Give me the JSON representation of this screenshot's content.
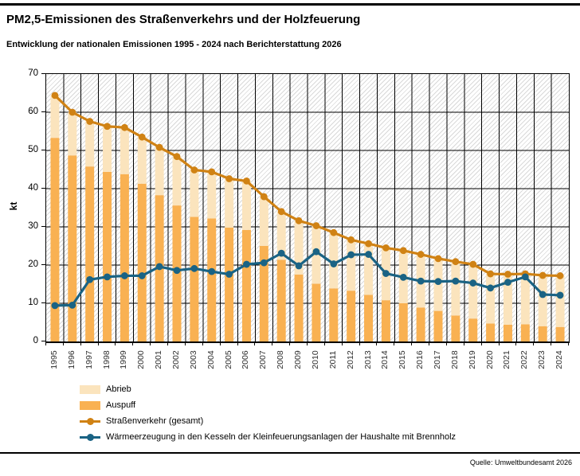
{
  "page": {
    "title": "PM2,5-Emissionen des Straßenverkehrs und der Holzfeuerung",
    "subtitle": "Entwicklung der nationalen Emissionen 1995 - 2024 nach Berichterstattung 2026",
    "source": "Quelle: Umweltbundesamt 2026"
  },
  "colors": {
    "abrieb": "#FBE4BD",
    "auspuff": "#F9B152",
    "strassenverkehr": "#D08214",
    "holz": "#1A6384",
    "grid": "#000000",
    "tick_text": "#2e2e2e"
  },
  "chart_data": {
    "type": "bar",
    "subtype": "stacked-bars-with-lines",
    "title": "PM2,5-Emissionen des Straßenverkehrs und der Holzfeuerung",
    "xlabel": "",
    "ylabel": "kt",
    "ylim": [
      0,
      70
    ],
    "y_tick_step": 10,
    "grid": true,
    "legend_position": "bottom-left",
    "categories": [
      "1995",
      "1996",
      "1997",
      "1998",
      "1999",
      "2000",
      "2001",
      "2002",
      "2003",
      "2004",
      "2005",
      "2006",
      "2007",
      "2008",
      "2009",
      "2010",
      "2011",
      "2012",
      "2013",
      "2014",
      "2015",
      "2016",
      "2017",
      "2018",
      "2019",
      "2020",
      "2021",
      "2022",
      "2023",
      "2024"
    ],
    "series": [
      {
        "name": "Abrieb",
        "type": "bar-stack-top",
        "values": [
          11.1,
          11.3,
          11.8,
          11.9,
          12.2,
          12.2,
          12.5,
          12.8,
          12.3,
          12.2,
          12.8,
          12.8,
          12.9,
          12.6,
          14.1,
          15.2,
          14.6,
          13.3,
          13.4,
          13.7,
          13.8,
          13.9,
          13.7,
          14.1,
          14.2,
          13.0,
          13.2,
          13.2,
          13.3,
          13.4
        ]
      },
      {
        "name": "Auspuff",
        "type": "bar-stack-bottom",
        "values": [
          53.3,
          48.7,
          45.8,
          44.4,
          43.8,
          41.3,
          38.3,
          35.6,
          32.6,
          32.2,
          29.8,
          29.2,
          25.0,
          21.4,
          17.5,
          15.1,
          13.9,
          13.3,
          12.2,
          10.8,
          10.0,
          8.9,
          8.0,
          6.8,
          6.0,
          4.7,
          4.4,
          4.5,
          4.0,
          3.8
        ]
      },
      {
        "name": "Straßenverkehr (gesamt)",
        "type": "line",
        "values": [
          64.4,
          60.0,
          57.6,
          56.3,
          56.0,
          53.5,
          50.8,
          48.4,
          44.9,
          44.4,
          42.6,
          42.0,
          37.9,
          34.0,
          31.6,
          30.3,
          28.5,
          26.6,
          25.6,
          24.5,
          23.8,
          22.8,
          21.7,
          20.9,
          20.2,
          17.7,
          17.6,
          17.7,
          17.3,
          17.2
        ]
      },
      {
        "name": "Wärmeerzeugung in den Kesseln der Kleinfeuerungsanlagen der Haushalte mit Brennholz",
        "type": "line",
        "values": [
          9.4,
          9.5,
          16.2,
          16.9,
          17.2,
          17.2,
          19.6,
          18.6,
          19.1,
          18.3,
          17.6,
          20.2,
          20.6,
          23.1,
          19.8,
          23.5,
          20.3,
          22.7,
          22.8,
          17.8,
          16.8,
          15.8,
          15.7,
          15.8,
          15.3,
          14.0,
          15.5,
          16.9,
          12.3,
          12.1
        ]
      }
    ]
  }
}
